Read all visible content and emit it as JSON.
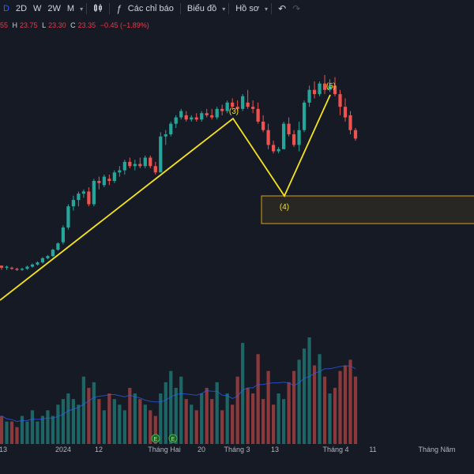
{
  "toolbar": {
    "intervals": [
      "D",
      "2D",
      "W",
      "2W",
      "M"
    ],
    "active_interval": "D",
    "indicators_label": "Các chỉ báo",
    "chart_type_label": "Biểu đồ",
    "profile_label": "Hồ sơ",
    "icons": [
      "candles-icon",
      "fx-icon",
      "undo-icon",
      "redo-icon"
    ]
  },
  "ohlc": {
    "o_value": "55",
    "h_key": "H",
    "h_value": "23.75",
    "l_key": "L",
    "l_value": "23.30",
    "c_key": "C",
    "c_value": "23.35",
    "change": "−0.45 (−1.89%)"
  },
  "colors": {
    "up": "#26a69a",
    "down": "#ef5350",
    "wave": "#f5e31b",
    "zone_border": "#d4a017",
    "ma": "#2962ff",
    "background": "#161a25"
  },
  "chart_data": {
    "type": "candlestick",
    "y_range": [
      16.0,
      28.5
    ],
    "x_labels": [
      "13",
      "2024",
      "12",
      "Tháng Hai",
      "20",
      "Tháng 3",
      "13",
      "Tháng 4",
      "11",
      "Tháng Năm"
    ],
    "wave_labels": [
      "(3)",
      "(4)",
      "(5)"
    ],
    "event_markers": [
      "E",
      "E"
    ],
    "candles": [
      [
        19.5,
        19.5,
        19.3,
        19.4
      ],
      [
        19.4,
        19.5,
        19.3,
        19.45
      ],
      [
        19.4,
        19.45,
        19.3,
        19.35
      ],
      [
        19.35,
        19.4,
        19.25,
        19.3
      ],
      [
        19.3,
        19.4,
        19.25,
        19.35
      ],
      [
        19.35,
        19.5,
        19.3,
        19.45
      ],
      [
        19.45,
        19.6,
        19.4,
        19.55
      ],
      [
        19.55,
        19.7,
        19.5,
        19.65
      ],
      [
        19.65,
        19.9,
        19.6,
        19.85
      ],
      [
        19.85,
        20.0,
        19.8,
        19.95
      ],
      [
        19.95,
        20.3,
        19.9,
        20.25
      ],
      [
        20.25,
        20.6,
        20.2,
        20.55
      ],
      [
        20.6,
        21.4,
        20.5,
        21.3
      ],
      [
        21.3,
        22.4,
        21.2,
        22.3
      ],
      [
        22.3,
        22.8,
        22.1,
        22.6
      ],
      [
        22.6,
        23.0,
        22.3,
        22.9
      ],
      [
        22.9,
        23.1,
        22.7,
        23.0
      ],
      [
        23.0,
        23.2,
        22.3,
        22.4
      ],
      [
        22.4,
        23.6,
        22.3,
        23.5
      ],
      [
        23.5,
        23.7,
        23.1,
        23.4
      ],
      [
        23.3,
        23.8,
        23.2,
        23.7
      ],
      [
        23.6,
        23.8,
        23.3,
        23.5
      ],
      [
        23.5,
        24.0,
        23.4,
        23.9
      ],
      [
        23.9,
        24.2,
        23.7,
        24.0
      ],
      [
        24.0,
        24.5,
        23.8,
        24.4
      ],
      [
        24.4,
        24.6,
        24.1,
        24.2
      ],
      [
        24.2,
        24.5,
        24.0,
        24.3
      ],
      [
        24.3,
        24.6,
        24.1,
        24.2
      ],
      [
        24.2,
        24.7,
        24.1,
        24.6
      ],
      [
        24.6,
        24.7,
        24.1,
        24.2
      ],
      [
        24.2,
        24.4,
        23.8,
        23.9
      ],
      [
        23.9,
        25.8,
        23.9,
        25.6
      ],
      [
        25.6,
        25.9,
        25.2,
        25.7
      ],
      [
        25.7,
        26.3,
        25.6,
        26.2
      ],
      [
        26.2,
        26.6,
        26.0,
        26.5
      ],
      [
        26.5,
        26.9,
        26.4,
        26.8
      ],
      [
        26.6,
        26.8,
        26.3,
        26.4
      ],
      [
        26.4,
        26.6,
        26.3,
        26.5
      ],
      [
        26.5,
        26.7,
        26.3,
        26.4
      ],
      [
        26.4,
        26.8,
        26.3,
        26.7
      ],
      [
        26.7,
        26.9,
        26.5,
        26.6
      ],
      [
        26.6,
        26.9,
        26.4,
        26.5
      ],
      [
        26.5,
        27.0,
        26.4,
        26.9
      ],
      [
        26.9,
        27.1,
        26.6,
        26.8
      ],
      [
        26.8,
        27.3,
        26.7,
        27.2
      ],
      [
        27.2,
        27.4,
        26.9,
        27.0
      ],
      [
        27.0,
        27.3,
        26.8,
        26.9
      ],
      [
        26.9,
        27.6,
        26.8,
        27.5
      ],
      [
        27.2,
        27.8,
        26.9,
        27.0
      ],
      [
        27.0,
        27.3,
        26.7,
        26.9
      ],
      [
        26.9,
        27.2,
        26.2,
        26.3
      ],
      [
        26.3,
        26.6,
        25.8,
        25.9
      ],
      [
        25.9,
        26.2,
        25.0,
        25.2
      ],
      [
        25.2,
        25.4,
        24.8,
        24.9
      ],
      [
        24.9,
        25.1,
        24.8,
        25.0
      ],
      [
        25.0,
        26.3,
        25.0,
        26.2
      ],
      [
        26.2,
        26.5,
        25.6,
        25.7
      ],
      [
        25.7,
        25.9,
        25.1,
        25.2
      ],
      [
        25.2,
        26.3,
        24.9,
        25.9
      ],
      [
        25.9,
        27.3,
        25.8,
        27.2
      ],
      [
        27.2,
        28.0,
        27.0,
        27.8
      ],
      [
        27.8,
        28.2,
        27.4,
        27.6
      ],
      [
        27.6,
        28.2,
        27.5,
        28.1
      ],
      [
        28.1,
        28.5,
        27.6,
        27.8
      ],
      [
        27.8,
        28.3,
        27.7,
        28.0
      ],
      [
        28.0,
        28.4,
        27.5,
        27.6
      ],
      [
        27.6,
        27.8,
        26.6,
        27.0
      ],
      [
        27.0,
        27.4,
        26.3,
        26.5
      ],
      [
        26.6,
        26.8,
        25.7,
        25.9
      ],
      [
        25.9,
        26.0,
        25.4,
        25.5
      ]
    ],
    "volumes": [
      5,
      4,
      4,
      3,
      5,
      4,
      6,
      4,
      5,
      6,
      5,
      7,
      8,
      9,
      8,
      7,
      12,
      10,
      11,
      8,
      6,
      9,
      8,
      7,
      6,
      10,
      9,
      8,
      7,
      6,
      5,
      9,
      11,
      13,
      10,
      12,
      8,
      7,
      6,
      9,
      10,
      8,
      11,
      6,
      9,
      7,
      12,
      18,
      10,
      9,
      16,
      8,
      13,
      7,
      9,
      8,
      11,
      13,
      15,
      17,
      19,
      14,
      16,
      12,
      9,
      10,
      13,
      14,
      15,
      12
    ]
  }
}
